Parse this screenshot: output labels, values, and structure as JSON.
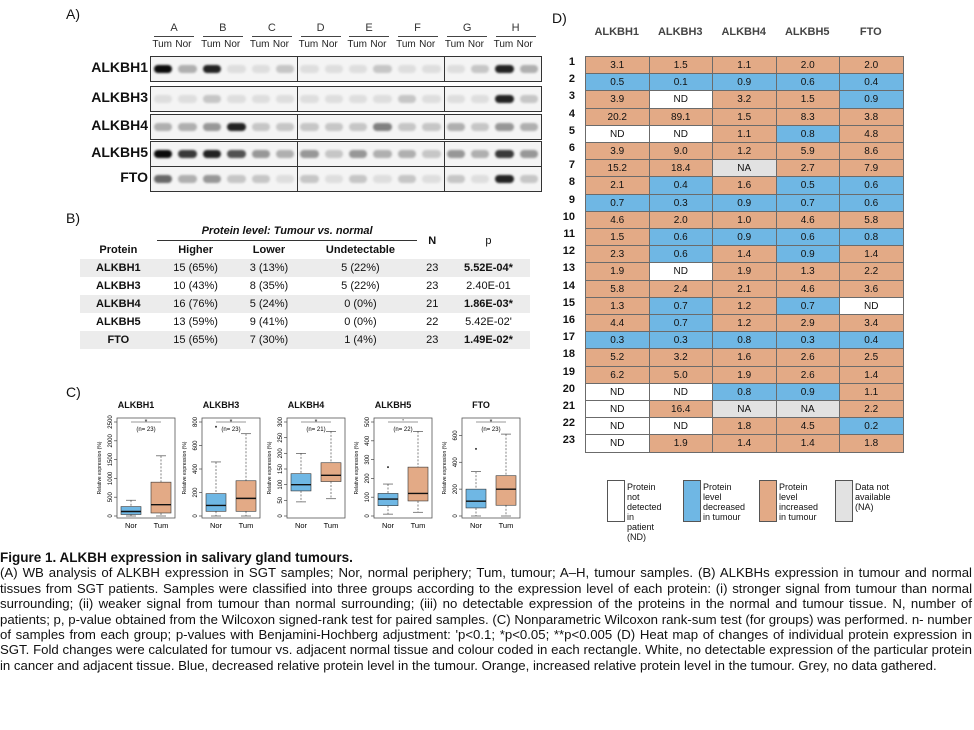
{
  "panel_labels": {
    "a": "A)",
    "b": "B)",
    "c": "C)",
    "d": "D)"
  },
  "panelA": {
    "lanes": [
      "A",
      "B",
      "C",
      "D",
      "E",
      "F",
      "G",
      "H"
    ],
    "sub_labels": [
      "Tum",
      "Nor"
    ],
    "proteins": [
      "ALKBH1",
      "ALKBH3",
      "ALKBH4",
      "ALKBH5",
      "FTO"
    ]
  },
  "tableB": {
    "header": {
      "protein": "Protein",
      "group": "Protein level: Tumour vs. normal",
      "higher": "Higher",
      "lower": "Lower",
      "undetectable": "Undetectable",
      "n": "N",
      "p": "p"
    },
    "rows": [
      {
        "protein": "ALKBH1",
        "higher": "15 (65%)",
        "lower": "3 (13%)",
        "undetectable": "5 (22%)",
        "n": "23",
        "p": "5.52E-04*",
        "sig": true
      },
      {
        "protein": "ALKBH3",
        "higher": "10 (43%)",
        "lower": "8 (35%)",
        "undetectable": "5 (22%)",
        "n": "23",
        "p": "2.40E-01",
        "sig": false
      },
      {
        "protein": "ALKBH4",
        "higher": "16 (76%)",
        "lower": "5 (24%)",
        "undetectable": "0 (0%)",
        "n": "21",
        "p": "1.86E-03*",
        "sig": true
      },
      {
        "protein": "ALKBH5",
        "higher": "13 (59%)",
        "lower": "9 (41%)",
        "undetectable": "0 (0%)",
        "n": "22",
        "p": "5.42E-02'",
        "sig": false
      },
      {
        "protein": "FTO",
        "higher": "15 (65%)",
        "lower": "7 (30%)",
        "undetectable": "1 (4%)",
        "n": "23",
        "p": "1.49E-02*",
        "sig": true
      }
    ]
  },
  "panelC": {
    "ylabel": "Relative expression (%)",
    "xlabels": [
      "Nor",
      "Tum"
    ],
    "colors": {
      "nor": "#6fb7e4",
      "tum": "#e3aa86"
    },
    "plots": [
      {
        "title": "ALKBH1",
        "n": "(n= 23)",
        "sig": "*",
        "ymax": 2500,
        "ticks": [
          0,
          500,
          1000,
          1500,
          2000,
          2500
        ],
        "nor": {
          "q1": 40,
          "med": 120,
          "q3": 250,
          "lo": 0,
          "hi": 420,
          "out": []
        },
        "tum": {
          "q1": 80,
          "med": 300,
          "q3": 900,
          "lo": 0,
          "hi": 1600,
          "out": []
        }
      },
      {
        "title": "ALKBH3",
        "n": "(n= 23)",
        "sig": "*",
        "ymax": 800,
        "ticks": [
          0,
          200,
          400,
          600,
          800
        ],
        "nor": {
          "q1": 40,
          "med": 90,
          "q3": 190,
          "lo": 0,
          "hi": 460,
          "out": [
            760
          ]
        },
        "tum": {
          "q1": 40,
          "med": 150,
          "q3": 300,
          "lo": 0,
          "hi": 700,
          "out": []
        }
      },
      {
        "title": "ALKBH4",
        "n": "(n= 21)",
        "sig": "*",
        "ymax": 300,
        "ticks": [
          0,
          50,
          100,
          150,
          200,
          250,
          300
        ],
        "nor": {
          "q1": 80,
          "med": 100,
          "q3": 135,
          "lo": 45,
          "hi": 200,
          "out": []
        },
        "tum": {
          "q1": 110,
          "med": 130,
          "q3": 170,
          "lo": 55,
          "hi": 270,
          "out": []
        }
      },
      {
        "title": "ALKBH5",
        "n": "(n= 22)",
        "sig": "'",
        "ymax": 500,
        "ticks": [
          0,
          100,
          200,
          300,
          400,
          500
        ],
        "nor": {
          "q1": 55,
          "med": 90,
          "q3": 120,
          "lo": 10,
          "hi": 170,
          "out": [
            260
          ]
        },
        "tum": {
          "q1": 80,
          "med": 120,
          "q3": 260,
          "lo": 20,
          "hi": 450,
          "out": []
        }
      },
      {
        "title": "FTO",
        "n": "(n= 23)",
        "sig": "*",
        "ymax": 700,
        "ticks": [
          0,
          200,
          400,
          600
        ],
        "nor": {
          "q1": 60,
          "med": 110,
          "q3": 200,
          "lo": 0,
          "hi": 330,
          "out": [
            500
          ]
        },
        "tum": {
          "q1": 80,
          "med": 200,
          "q3": 300,
          "lo": 0,
          "hi": 610,
          "out": []
        }
      }
    ]
  },
  "panelD": {
    "columns": [
      "ALKBH1",
      "ALKBH3",
      "ALKBH4",
      "ALKBH5",
      "FTO"
    ],
    "colors": {
      "up": "#e3aa86",
      "down": "#6fb7e4",
      "nd": "#ffffff",
      "na": "#e2e2e2"
    },
    "rows": [
      {
        "id": "1",
        "cells": [
          [
            "3.1",
            "up"
          ],
          [
            "1.5",
            "up"
          ],
          [
            "1.1",
            "up"
          ],
          [
            "2.0",
            "up"
          ],
          [
            "2.0",
            "up"
          ]
        ]
      },
      {
        "id": "2",
        "cells": [
          [
            "0.5",
            "down"
          ],
          [
            "0.1",
            "down"
          ],
          [
            "0.9",
            "down"
          ],
          [
            "0.6",
            "down"
          ],
          [
            "0.4",
            "down"
          ]
        ]
      },
      {
        "id": "3",
        "cells": [
          [
            "3.9",
            "up"
          ],
          [
            "ND",
            "nd"
          ],
          [
            "3.2",
            "up"
          ],
          [
            "1.5",
            "up"
          ],
          [
            "0.9",
            "down"
          ]
        ]
      },
      {
        "id": "4",
        "cells": [
          [
            "20.2",
            "up"
          ],
          [
            "89.1",
            "up"
          ],
          [
            "1.5",
            "up"
          ],
          [
            "8.3",
            "up"
          ],
          [
            "3.8",
            "up"
          ]
        ]
      },
      {
        "id": "5",
        "cells": [
          [
            "ND",
            "nd"
          ],
          [
            "ND",
            "nd"
          ],
          [
            "1.1",
            "up"
          ],
          [
            "0.8",
            "down"
          ],
          [
            "4.8",
            "up"
          ]
        ]
      },
      {
        "id": "6",
        "cells": [
          [
            "3.9",
            "up"
          ],
          [
            "9.0",
            "up"
          ],
          [
            "1.2",
            "up"
          ],
          [
            "5.9",
            "up"
          ],
          [
            "8.6",
            "up"
          ]
        ]
      },
      {
        "id": "7",
        "cells": [
          [
            "15.2",
            "up"
          ],
          [
            "18.4",
            "up"
          ],
          [
            "NA",
            "na"
          ],
          [
            "2.7",
            "up"
          ],
          [
            "7.9",
            "up"
          ]
        ]
      },
      {
        "id": "8",
        "cells": [
          [
            "2.1",
            "up"
          ],
          [
            "0.4",
            "down"
          ],
          [
            "1.6",
            "up"
          ],
          [
            "0.5",
            "down"
          ],
          [
            "0.6",
            "down"
          ]
        ]
      },
      {
        "id": "9",
        "cells": [
          [
            "0.7",
            "down"
          ],
          [
            "0.3",
            "down"
          ],
          [
            "0.9",
            "down"
          ],
          [
            "0.7",
            "down"
          ],
          [
            "0.6",
            "down"
          ]
        ]
      },
      {
        "id": "10",
        "cells": [
          [
            "4.6",
            "up"
          ],
          [
            "2.0",
            "up"
          ],
          [
            "1.0",
            "up"
          ],
          [
            "4.6",
            "up"
          ],
          [
            "5.8",
            "up"
          ]
        ]
      },
      {
        "id": "11",
        "cells": [
          [
            "1.5",
            "up"
          ],
          [
            "0.6",
            "down"
          ],
          [
            "0.9",
            "down"
          ],
          [
            "0.6",
            "down"
          ],
          [
            "0.8",
            "down"
          ]
        ]
      },
      {
        "id": "12",
        "cells": [
          [
            "2.3",
            "up"
          ],
          [
            "0.6",
            "down"
          ],
          [
            "1.4",
            "up"
          ],
          [
            "0.9",
            "down"
          ],
          [
            "1.4",
            "up"
          ]
        ]
      },
      {
        "id": "13",
        "cells": [
          [
            "1.9",
            "up"
          ],
          [
            "ND",
            "nd"
          ],
          [
            "1.9",
            "up"
          ],
          [
            "1.3",
            "up"
          ],
          [
            "2.2",
            "up"
          ]
        ]
      },
      {
        "id": "14",
        "cells": [
          [
            "5.8",
            "up"
          ],
          [
            "2.4",
            "up"
          ],
          [
            "2.1",
            "up"
          ],
          [
            "4.6",
            "up"
          ],
          [
            "3.6",
            "up"
          ]
        ]
      },
      {
        "id": "15",
        "cells": [
          [
            "1.3",
            "up"
          ],
          [
            "0.7",
            "down"
          ],
          [
            "1.2",
            "up"
          ],
          [
            "0.7",
            "down"
          ],
          [
            "ND",
            "nd"
          ]
        ]
      },
      {
        "id": "16",
        "cells": [
          [
            "4.4",
            "up"
          ],
          [
            "0.7",
            "down"
          ],
          [
            "1.2",
            "up"
          ],
          [
            "2.9",
            "up"
          ],
          [
            "3.4",
            "up"
          ]
        ]
      },
      {
        "id": "17",
        "cells": [
          [
            "0.3",
            "down"
          ],
          [
            "0.3",
            "down"
          ],
          [
            "0.8",
            "down"
          ],
          [
            "0.3",
            "down"
          ],
          [
            "0.4",
            "down"
          ]
        ]
      },
      {
        "id": "18",
        "cells": [
          [
            "5.2",
            "up"
          ],
          [
            "3.2",
            "up"
          ],
          [
            "1.6",
            "up"
          ],
          [
            "2.6",
            "up"
          ],
          [
            "2.5",
            "up"
          ]
        ]
      },
      {
        "id": "19",
        "cells": [
          [
            "6.2",
            "up"
          ],
          [
            "5.0",
            "up"
          ],
          [
            "1.9",
            "up"
          ],
          [
            "2.6",
            "up"
          ],
          [
            "1.4",
            "up"
          ]
        ]
      },
      {
        "id": "20",
        "cells": [
          [
            "ND",
            "nd"
          ],
          [
            "ND",
            "nd"
          ],
          [
            "0.8",
            "down"
          ],
          [
            "0.9",
            "down"
          ],
          [
            "1.1",
            "up"
          ]
        ]
      },
      {
        "id": "21",
        "cells": [
          [
            "ND",
            "nd"
          ],
          [
            "16.4",
            "up"
          ],
          [
            "NA",
            "na"
          ],
          [
            "NA",
            "na"
          ],
          [
            "2.2",
            "up"
          ]
        ]
      },
      {
        "id": "22",
        "cells": [
          [
            "ND",
            "nd"
          ],
          [
            "ND",
            "nd"
          ],
          [
            "1.8",
            "up"
          ],
          [
            "4.5",
            "up"
          ],
          [
            "0.2",
            "down"
          ]
        ]
      },
      {
        "id": "23",
        "cells": [
          [
            "ND",
            "nd"
          ],
          [
            "1.9",
            "up"
          ],
          [
            "1.4",
            "up"
          ],
          [
            "1.4",
            "up"
          ],
          [
            "1.8",
            "up"
          ]
        ]
      }
    ],
    "legend": [
      {
        "kind": "nd",
        "text": "Protein not\ndetected\nin patient\n(ND)"
      },
      {
        "kind": "down",
        "text": "Protein level\ndecreased\nin tumour"
      },
      {
        "kind": "up",
        "text": "Protein level\nincreased\nin tumour"
      },
      {
        "kind": "na",
        "text": "Data not\navailable\n(NA)"
      }
    ]
  },
  "caption": {
    "title": "Figure 1. ALKBH expression in salivary gland tumours.",
    "body": "(A) WB analysis of ALKBH expression in SGT samples; Nor, normal periphery; Tum, tumour; A–H, tumour samples. (B) ALKBHs expression in tumour and normal tissues from SGT patients. Samples were classified into three groups according to the expression level of each protein: (i) stronger signal from tumour than normal surrounding; (ii) weaker signal from tumour than normal surrounding; (iii) no detectable expression of the proteins in the normal and tumour tissue. N, number of patients; p, p-value obtained from the Wilcoxon signed-rank test for paired samples. (C) Nonparametric Wilcoxon rank-sum test (for groups) was performed. n- number of samples from each group; p-values with Benjamini-Hochberg adjustment: 'p<0.1; *p<0.05; **p<0.005 (D) Heat map of changes of individual protein expression in SGT. Fold changes were calculated for tumour vs. adjacent normal tissue and colour coded in each rectangle. White, no detectable expression of the particular protein in cancer and adjacent tissue. Blue, decreased relative protein level in the tumour. Orange, increased relative protein level in the tumour. Grey, no data gathered."
  }
}
